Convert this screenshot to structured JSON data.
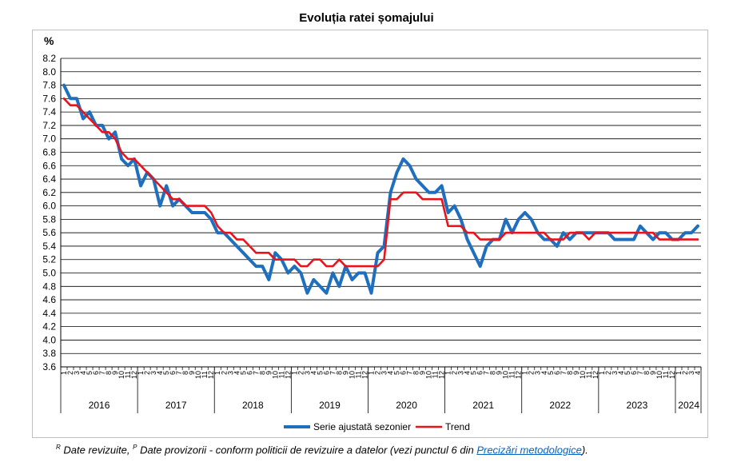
{
  "chart_data": {
    "type": "line",
    "title": "Evoluția ratei șomajului",
    "ylabel": "%",
    "xlabel": "",
    "ylim": [
      3.6,
      8.2
    ],
    "yticks": [
      "3.6",
      "3.8",
      "4.0",
      "4.2",
      "4.4",
      "4.6",
      "4.8",
      "5.0",
      "5.2",
      "5.4",
      "5.6",
      "5.8",
      "6.0",
      "6.2",
      "6.4",
      "6.6",
      "6.8",
      "7.0",
      "7.2",
      "7.4",
      "7.6",
      "7.8",
      "8.0",
      "8.2"
    ],
    "grid": true,
    "legend_position": "bottom",
    "years": [
      "2016",
      "2017",
      "2018",
      "2019",
      "2020",
      "2021",
      "2022",
      "2023",
      "2024"
    ],
    "month_labels": [
      "1",
      "2",
      "3",
      "4",
      "5",
      "6",
      "7",
      "8",
      "9",
      "10",
      "11",
      "12"
    ],
    "month_labels_2024": [
      "1",
      "2",
      "3",
      "4"
    ],
    "x": [
      "2016-01",
      "2016-02",
      "2016-03",
      "2016-04",
      "2016-05",
      "2016-06",
      "2016-07",
      "2016-08",
      "2016-09",
      "2016-10",
      "2016-11",
      "2016-12",
      "2017-01",
      "2017-02",
      "2017-03",
      "2017-04",
      "2017-05",
      "2017-06",
      "2017-07",
      "2017-08",
      "2017-09",
      "2017-10",
      "2017-11",
      "2017-12",
      "2018-01",
      "2018-02",
      "2018-03",
      "2018-04",
      "2018-05",
      "2018-06",
      "2018-07",
      "2018-08",
      "2018-09",
      "2018-10",
      "2018-11",
      "2018-12",
      "2019-01",
      "2019-02",
      "2019-03",
      "2019-04",
      "2019-05",
      "2019-06",
      "2019-07",
      "2019-08",
      "2019-09",
      "2019-10",
      "2019-11",
      "2019-12",
      "2020-01",
      "2020-02",
      "2020-03",
      "2020-04",
      "2020-05",
      "2020-06",
      "2020-07",
      "2020-08",
      "2020-09",
      "2020-10",
      "2020-11",
      "2020-12",
      "2021-01",
      "2021-02",
      "2021-03",
      "2021-04",
      "2021-05",
      "2021-06",
      "2021-07",
      "2021-08",
      "2021-09",
      "2021-10",
      "2021-11",
      "2021-12",
      "2022-01",
      "2022-02",
      "2022-03",
      "2022-04",
      "2022-05",
      "2022-06",
      "2022-07",
      "2022-08",
      "2022-09",
      "2022-10",
      "2022-11",
      "2022-12",
      "2023-01",
      "2023-02",
      "2023-03",
      "2023-04",
      "2023-05",
      "2023-06",
      "2023-07",
      "2023-08",
      "2023-09",
      "2023-10",
      "2023-11",
      "2023-12",
      "2024-01",
      "2024-02",
      "2024-03",
      "2024-04"
    ],
    "series": [
      {
        "name": "Serie ajustată sezonier",
        "color": "#1f6fbf",
        "values": [
          7.8,
          7.6,
          7.6,
          7.3,
          7.4,
          7.2,
          7.2,
          7.0,
          7.1,
          6.7,
          6.6,
          6.7,
          6.3,
          6.5,
          6.4,
          6.0,
          6.3,
          6.0,
          6.1,
          6.0,
          5.9,
          5.9,
          5.9,
          5.8,
          5.6,
          5.6,
          5.5,
          5.4,
          5.3,
          5.2,
          5.1,
          5.1,
          4.9,
          5.3,
          5.2,
          5.0,
          5.1,
          5.0,
          4.7,
          4.9,
          4.8,
          4.7,
          5.0,
          4.8,
          5.1,
          4.9,
          5.0,
          5.0,
          4.7,
          5.3,
          5.4,
          6.2,
          6.5,
          6.7,
          6.6,
          6.4,
          6.3,
          6.2,
          6.2,
          6.3,
          5.9,
          6.0,
          5.8,
          5.5,
          5.3,
          5.1,
          5.4,
          5.5,
          5.5,
          5.8,
          5.6,
          5.8,
          5.9,
          5.8,
          5.6,
          5.5,
          5.5,
          5.4,
          5.6,
          5.5,
          5.6,
          5.6,
          5.6,
          5.6,
          5.6,
          5.6,
          5.5,
          5.5,
          5.5,
          5.5,
          5.7,
          5.6,
          5.5,
          5.6,
          5.6,
          5.5,
          5.5,
          5.6,
          5.6,
          5.7
        ]
      },
      {
        "name": "Trend",
        "color": "#e8141c",
        "values": [
          7.6,
          7.5,
          7.5,
          7.4,
          7.3,
          7.2,
          7.1,
          7.1,
          7.0,
          6.8,
          6.7,
          6.7,
          6.6,
          6.5,
          6.4,
          6.3,
          6.2,
          6.1,
          6.1,
          6.0,
          6.0,
          6.0,
          6.0,
          5.9,
          5.7,
          5.6,
          5.6,
          5.5,
          5.5,
          5.4,
          5.3,
          5.3,
          5.3,
          5.2,
          5.2,
          5.2,
          5.2,
          5.1,
          5.1,
          5.2,
          5.2,
          5.1,
          5.1,
          5.2,
          5.1,
          5.1,
          5.1,
          5.1,
          5.1,
          5.1,
          5.2,
          6.1,
          6.1,
          6.2,
          6.2,
          6.2,
          6.1,
          6.1,
          6.1,
          6.1,
          5.7,
          5.7,
          5.7,
          5.6,
          5.6,
          5.5,
          5.5,
          5.5,
          5.5,
          5.6,
          5.6,
          5.6,
          5.6,
          5.6,
          5.6,
          5.6,
          5.5,
          5.5,
          5.5,
          5.6,
          5.6,
          5.6,
          5.5,
          5.6,
          5.6,
          5.6,
          5.6,
          5.6,
          5.6,
          5.6,
          5.6,
          5.6,
          5.6,
          5.5,
          5.5,
          5.5,
          5.5,
          5.5,
          5.5,
          5.5
        ]
      }
    ]
  },
  "footnote": {
    "r_mark": "R",
    "r_text": " Date revizuite,  ",
    "p_mark": "P",
    "p_text": " Date provizorii - conform politicii de revizuire a datelor (vezi punctul 6 din ",
    "link_text": "Precizări metodologice",
    "end_text": ")."
  }
}
